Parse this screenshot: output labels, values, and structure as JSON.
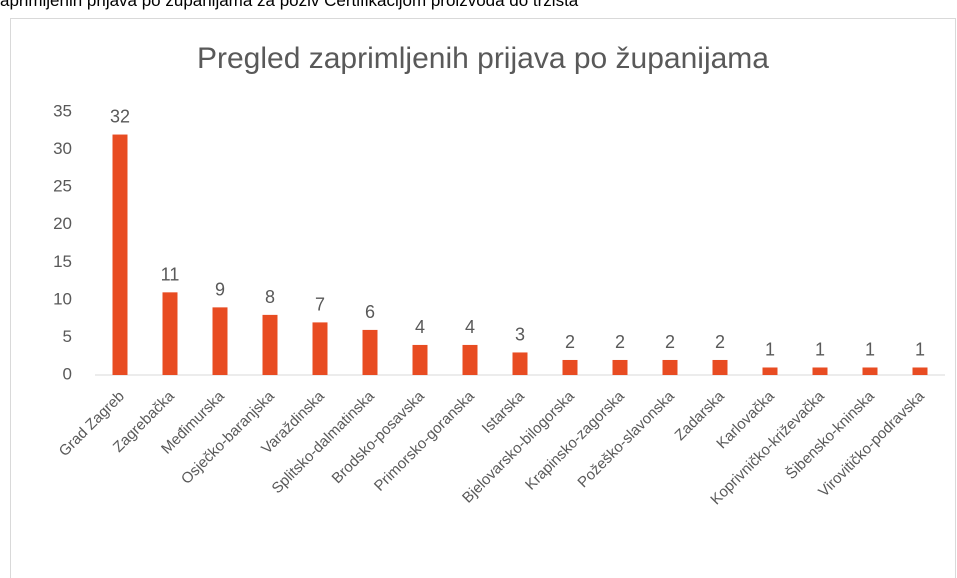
{
  "caption": "aprimljenih prijava po županijama za poziv Certifikacijom proizvoda do tržišta",
  "chart_data": {
    "type": "bar",
    "title": "Pregled zaprimljenih prijava po županijama",
    "categories": [
      "Grad Zagreb",
      "Zagrebačka",
      "Međimurska",
      "Osječko-baranjska",
      "Varaždinska",
      "Splitsko-dalmatinska",
      "Brodsko-posavska",
      "Primorsko-goranska",
      "Istarska",
      "Bjelovarsko-bilogorska",
      "Krapinsko-zagorska",
      "Požeško-slavonska",
      "Zadarska",
      "Karlovačka",
      "Koprivničko-križevačka",
      "Šibensko-kninska",
      "Virovitičko-podravska"
    ],
    "values": [
      32,
      11,
      9,
      8,
      7,
      6,
      4,
      4,
      3,
      2,
      2,
      2,
      2,
      1,
      1,
      1,
      1
    ],
    "color": "#e84c22",
    "ylim": [
      0,
      35
    ],
    "yticks": [
      0,
      5,
      10,
      15,
      20,
      25,
      30,
      35
    ],
    "grid": false
  }
}
